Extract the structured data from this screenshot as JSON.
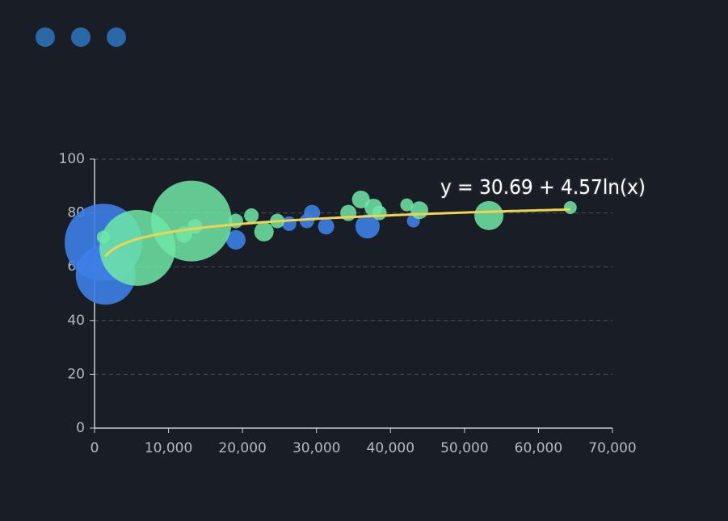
{
  "chart_data": {
    "type": "scatter",
    "xlim": [
      0,
      70000
    ],
    "xticks": [
      0,
      {
        "value": 10000,
        "label": "10,000"
      },
      {
        "value": 20000,
        "label": "20,000"
      },
      {
        "value": 30000,
        "label": "30,000"
      },
      {
        "value": 40000,
        "label": "40,000"
      },
      {
        "value": 50000,
        "label": "50,000"
      },
      {
        "value": 60000,
        "label": "60,000"
      },
      {
        "value": 70000,
        "label": "70,000"
      }
    ],
    "ylim": [
      0,
      100
    ],
    "yticks": [
      0,
      20,
      40,
      60,
      80,
      100
    ],
    "grid": true,
    "series": [
      {
        "color": "#3d80e8",
        "x": [
          1200,
          1500,
          19100,
          26300,
          28700,
          29400,
          31300,
          36900,
          43100
        ],
        "values": [
          69,
          57,
          70,
          76,
          77,
          80,
          75,
          75,
          77
        ],
        "sizes": [
          48,
          37,
          12,
          9,
          9,
          10,
          10,
          15,
          8
        ]
      },
      {
        "color": "#6ee8a4",
        "x": [
          1200,
          5800,
          13100,
          12100,
          13600,
          19100,
          21200,
          22900,
          24700,
          34300,
          36000,
          37700,
          38500,
          42200,
          43900,
          53300,
          64300
        ],
        "values": [
          71,
          67,
          77,
          72,
          75,
          77,
          79,
          73,
          77,
          80,
          85,
          82,
          80,
          83,
          81,
          79,
          82
        ],
        "sizes": [
          8,
          47,
          50,
          10,
          9,
          9,
          9,
          12,
          9,
          10,
          11,
          11,
          9,
          8,
          11,
          18,
          8
        ]
      }
    ],
    "trendline": {
      "label": "y = 30.69 + 4.57ln(x)",
      "intercept": 30.69,
      "slope": 4.57,
      "xrange": [
        1400,
        64300
      ],
      "color": "#f2d34f"
    }
  }
}
